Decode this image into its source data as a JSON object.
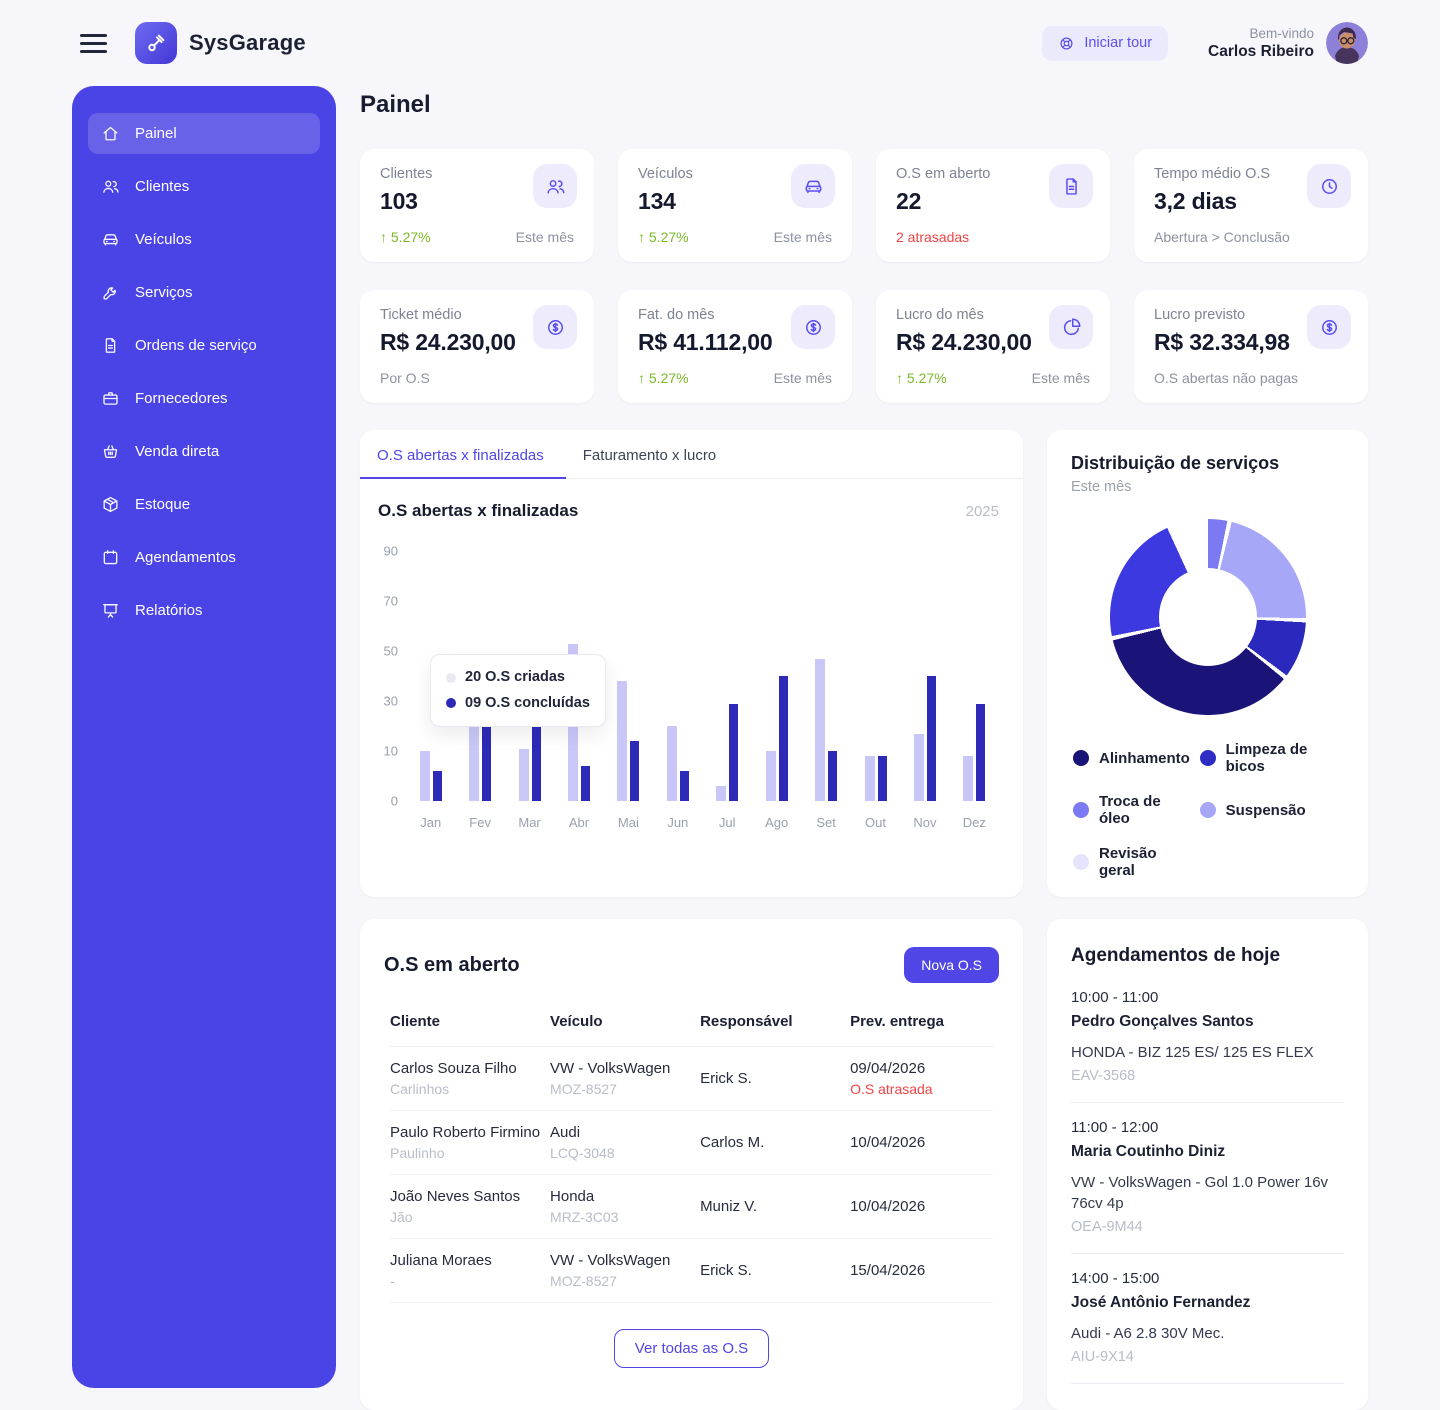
{
  "theme": {
    "primary": "#4f46e5",
    "sidebar_bg": "#4a43e5",
    "icon_bg": "#edebfc",
    "green": "#7cb928",
    "red": "#ef4444",
    "page_bg": "#f7f7fb"
  },
  "header": {
    "brand": "SysGarage",
    "tour_button": "Iniciar tour",
    "welcome": "Bem-vindo",
    "user_name": "Carlos Ribeiro"
  },
  "page_title": "Painel",
  "sidebar": {
    "items": [
      {
        "id": "painel",
        "icon": "home",
        "label": "Painel",
        "active": true
      },
      {
        "id": "clientes",
        "icon": "users",
        "label": "Clientes",
        "active": false
      },
      {
        "id": "veiculos",
        "icon": "car",
        "label": "Veículos",
        "active": false
      },
      {
        "id": "servicos",
        "icon": "wrench",
        "label": "Serviços",
        "active": false
      },
      {
        "id": "ordens-de-servico",
        "icon": "file",
        "label": "Ordens de serviço",
        "active": false
      },
      {
        "id": "fornecedores",
        "icon": "briefcase",
        "label": "Fornecedores",
        "active": false
      },
      {
        "id": "venda-direta",
        "icon": "basket",
        "label": "Venda direta",
        "active": false
      },
      {
        "id": "estoque",
        "icon": "box",
        "label": "Estoque",
        "active": false
      },
      {
        "id": "agendamentos",
        "icon": "calendar",
        "label": "Agendamentos",
        "active": false
      },
      {
        "id": "relatorios",
        "icon": "presentation",
        "label": "Relatórios",
        "active": false
      }
    ]
  },
  "stats": [
    {
      "id": "clientes",
      "label": "Clientes",
      "value": "103",
      "icon": "users",
      "foot_left": "↑ 5.27%",
      "foot_left_style": "green",
      "foot_right": "Este mês"
    },
    {
      "id": "veiculos",
      "label": "Veículos",
      "value": "134",
      "icon": "car",
      "foot_left": "↑ 5.27%",
      "foot_left_style": "green",
      "foot_right": "Este mês"
    },
    {
      "id": "os-em-aberto",
      "label": "O.S em aberto",
      "value": "22",
      "icon": "file",
      "foot_left": "2 atrasadas",
      "foot_left_style": "red",
      "foot_right": ""
    },
    {
      "id": "tempo-medio-os",
      "label": "Tempo médio O.S",
      "value": "3,2 dias",
      "icon": "clock",
      "foot_left": "Abertura > Conclusão",
      "foot_left_style": "muted",
      "foot_right": ""
    },
    {
      "id": "ticket-medio",
      "label": "Ticket médio",
      "value": "R$ 24.230,00",
      "icon": "dollar",
      "foot_left": "Por O.S",
      "foot_left_style": "muted",
      "foot_right": ""
    },
    {
      "id": "faturamento-do-mes",
      "label": "Fat. do mês",
      "value": "R$ 41.112,00",
      "icon": "dollar",
      "foot_left": "↑ 5.27%",
      "foot_left_style": "green",
      "foot_right": "Este mês"
    },
    {
      "id": "lucro-do-mes",
      "label": "Lucro do mês",
      "value": "R$ 24.230,00",
      "icon": "pie",
      "foot_left": "↑ 5.27%",
      "foot_left_style": "green",
      "foot_right": "Este mês"
    },
    {
      "id": "lucro-previsto",
      "label": "Lucro previsto",
      "value": "R$ 32.334,98",
      "icon": "dollar",
      "foot_left": "O.S abertas não pagas",
      "foot_left_style": "muted",
      "foot_right": ""
    }
  ],
  "tabs": [
    {
      "id": "os-abertas-finalizadas",
      "label": "O.S abertas x finalizadas",
      "active": true
    },
    {
      "id": "faturamento-lucro",
      "label": "Faturamento x lucro",
      "active": false
    }
  ],
  "chart_data": [
    {
      "type": "bar",
      "title": "O.S abertas x finalizadas",
      "year_label": "2025",
      "categories": [
        "Jan",
        "Fev",
        "Mar",
        "Abr",
        "Mai",
        "Jun",
        "Jul",
        "Ago",
        "Set",
        "Out",
        "Nov",
        "Dez"
      ],
      "series": [
        {
          "name": "O.S criadas",
          "color": "#c9c7f8",
          "values": [
            10,
            26,
            11,
            53,
            38,
            20,
            3,
            10,
            47,
            9,
            17,
            9
          ]
        },
        {
          "name": "O.S concluídas",
          "color": "#2d2ab8",
          "values": [
            6,
            32,
            44,
            7,
            14,
            6,
            29,
            40,
            10,
            9,
            40,
            29
          ]
        }
      ],
      "y_ticks": [
        90,
        70,
        50,
        30,
        10,
        0
      ],
      "grid": false,
      "tooltip": {
        "rows": [
          {
            "dot_color": "#e9e9f2",
            "label": "20 O.S criadas"
          },
          {
            "dot_color": "#2d2ab8",
            "label": "09 O.S concluídas"
          }
        ]
      }
    },
    {
      "type": "pie",
      "title": "Distribuição de serviços",
      "subtitle": "Este mês",
      "start_angle_deg": -22,
      "slices": [
        {
          "label": "Troca de óleo",
          "value": 10,
          "color": "#7b7af3"
        },
        {
          "label": "Suspensão",
          "value": 22,
          "color": "#a7a7f7"
        },
        {
          "label": "Limpeza de bicos",
          "value": 10,
          "color": "#2b28bd"
        },
        {
          "label": "Alinhamento",
          "value": 36,
          "color": "#1a1378"
        },
        {
          "label": "Revisão geral",
          "value": 22,
          "color": "#3d39e0"
        }
      ],
      "legend": [
        {
          "label": "Alinhamento",
          "color": "#1a1378"
        },
        {
          "label": "Limpeza de bicos",
          "color": "#2f2cc4"
        },
        {
          "label": "Troca de óleo",
          "color": "#7b7af3"
        },
        {
          "label": "Suspensão",
          "color": "#a7a7f7"
        },
        {
          "label": "Revisão geral",
          "color": "#e6e4fc"
        }
      ],
      "legend_position": "bottom"
    }
  ],
  "open_orders": {
    "title": "O.S em aberto",
    "new_button": "Nova O.S",
    "view_all": "Ver todas as O.S",
    "columns": [
      "Cliente",
      "Veículo",
      "Responsável",
      "Prev. entrega"
    ],
    "rows": [
      {
        "client": "Carlos Souza Filho",
        "client_sub": "Carlinhos",
        "vehicle": "VW - VolksWagen",
        "plate": "MOZ-8527",
        "responsible": "Erick S.",
        "due": "09/04/2026",
        "due_note": "O.S atrasada"
      },
      {
        "client": "Paulo Roberto Firmino",
        "client_sub": "Paulinho",
        "vehicle": "Audi",
        "plate": "LCQ-3048",
        "responsible": "Carlos M.",
        "due": "10/04/2026",
        "due_note": ""
      },
      {
        "client": "João Neves Santos",
        "client_sub": "Jão",
        "vehicle": "Honda",
        "plate": "MRZ-3C03",
        "responsible": "Muniz V.",
        "due": "10/04/2026",
        "due_note": ""
      },
      {
        "client": "Juliana Moraes",
        "client_sub": "-",
        "vehicle": "VW - VolksWagen",
        "plate": "MOZ-8527",
        "responsible": "Erick S.",
        "due": "15/04/2026",
        "due_note": ""
      }
    ]
  },
  "appointments": {
    "title": "Agendamentos de hoje",
    "items": [
      {
        "time": "10:00 - 11:00",
        "name": "Pedro Gonçalves Santos",
        "vehicle": "HONDA - BIZ 125 ES/ 125 ES FLEX",
        "plate": "EAV-3568"
      },
      {
        "time": "11:00 - 12:00",
        "name": "Maria Coutinho Diniz",
        "vehicle": "VW - VolksWagen - Gol 1.0 Power 16v 76cv 4p",
        "plate": "OEA-9M44"
      },
      {
        "time": "14:00 - 15:00",
        "name": "José Antônio Fernandez",
        "vehicle": "Audi - A6 2.8 30V Mec.",
        "plate": "AIU-9X14"
      }
    ]
  }
}
